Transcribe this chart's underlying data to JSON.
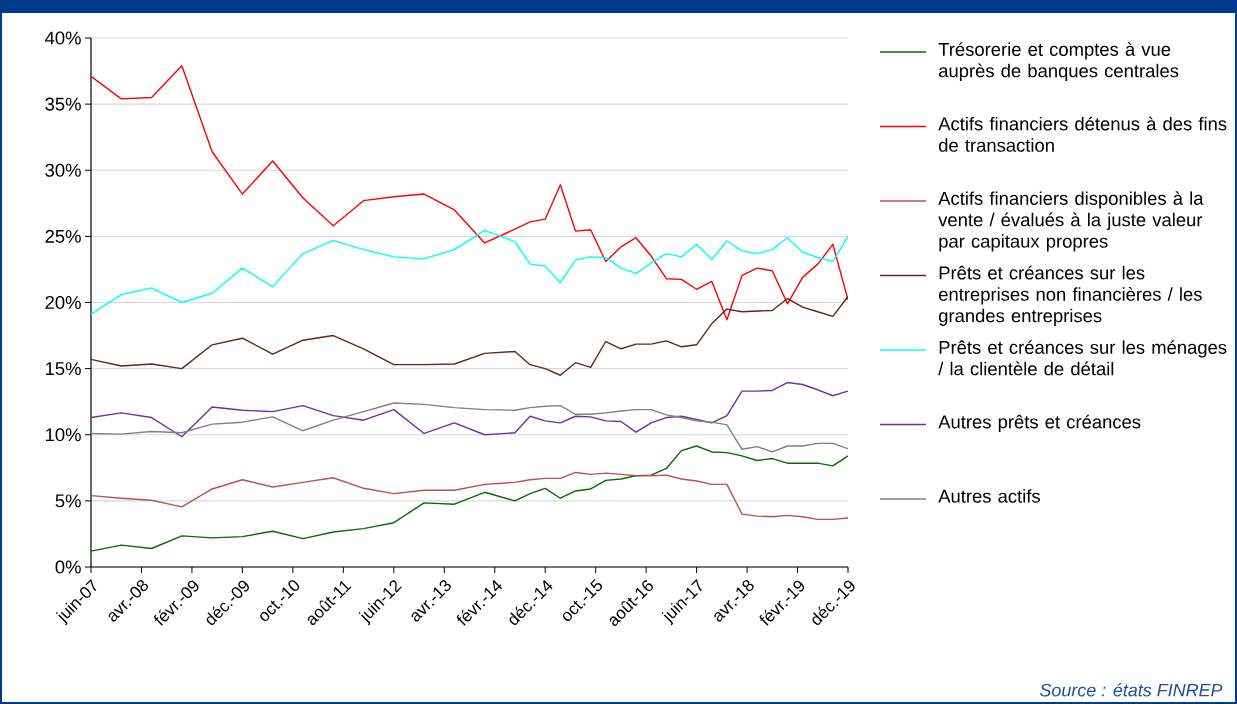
{
  "chart_data": {
    "type": "line",
    "x": [
      "2007-06",
      "2007-12",
      "2008-06",
      "2008-12",
      "2009-06",
      "2009-12",
      "2010-06",
      "2010-12",
      "2011-06",
      "2011-12",
      "2012-06",
      "2012-12",
      "2013-06",
      "2013-12",
      "2014-06",
      "2014-09",
      "2014-12",
      "2015-03",
      "2015-06",
      "2015-09",
      "2015-12",
      "2016-03",
      "2016-06",
      "2016-09",
      "2016-12",
      "2017-03",
      "2017-06",
      "2017-09",
      "2017-12",
      "2018-03",
      "2018-06",
      "2018-09",
      "2018-12",
      "2019-03",
      "2019-06",
      "2019-09",
      "2019-12"
    ],
    "series": [
      {
        "name": "Trésorerie et comptes à vue auprès de banques centrales",
        "color": "#007000",
        "values": [
          1.2,
          1.65,
          1.4,
          2.35,
          2.2,
          2.3,
          2.7,
          2.15,
          2.65,
          2.9,
          3.35,
          4.85,
          4.75,
          5.65,
          5.0,
          5.55,
          5.95,
          5.2,
          5.75,
          5.9,
          6.55,
          6.65,
          6.9,
          6.95,
          7.45,
          8.8,
          9.15,
          8.7,
          8.65,
          8.4,
          8.05,
          8.2,
          7.85,
          7.85,
          7.85,
          7.65,
          8.4
        ]
      },
      {
        "name": "Actifs financiers détenus à des fins de transaction",
        "color": "#ff0000",
        "values": [
          37.1,
          35.4,
          35.5,
          37.9,
          31.4,
          28.2,
          30.7,
          27.9,
          25.8,
          27.7,
          28.0,
          28.2,
          27.0,
          24.5,
          25.55,
          26.1,
          26.3,
          28.9,
          25.4,
          25.5,
          23.1,
          24.2,
          24.9,
          23.5,
          21.8,
          21.75,
          21.0,
          21.6,
          18.7,
          22.05,
          22.6,
          22.4,
          19.9,
          21.9,
          22.9,
          24.4,
          20.2
        ]
      },
      {
        "name": "Actifs financiers disponibles à la vente / évalués à la juste valeur par capitaux propres",
        "color": "#c0504d",
        "values": [
          5.4,
          5.2,
          5.05,
          4.55,
          5.9,
          6.6,
          6.05,
          6.4,
          6.75,
          5.95,
          5.55,
          5.8,
          5.8,
          6.25,
          6.4,
          6.6,
          6.7,
          6.7,
          7.15,
          7.0,
          7.1,
          7.0,
          6.9,
          6.9,
          6.95,
          6.65,
          6.5,
          6.25,
          6.25,
          4.0,
          3.85,
          3.8,
          3.9,
          3.8,
          3.6,
          3.6,
          3.7
        ]
      },
      {
        "name": "Prêts et créances sur les entreprises non financières / les grandes entreprises",
        "color": "#632523",
        "values": [
          15.7,
          15.2,
          15.35,
          15.0,
          16.8,
          17.3,
          16.1,
          17.15,
          17.5,
          16.5,
          15.3,
          15.3,
          15.35,
          16.15,
          16.3,
          15.3,
          15.0,
          14.5,
          15.45,
          15.1,
          17.05,
          16.5,
          16.85,
          16.85,
          17.1,
          16.65,
          16.8,
          18.4,
          19.5,
          19.3,
          19.35,
          19.4,
          20.3,
          19.65,
          19.3,
          18.95,
          20.45
        ]
      },
      {
        "name": "Prêts et créances sur les ménages / la clientèle de détail",
        "color": "#00ffff",
        "values": [
          19.1,
          20.6,
          21.1,
          20.0,
          20.7,
          22.6,
          21.2,
          23.7,
          24.7,
          24.0,
          23.45,
          23.3,
          24.0,
          25.45,
          24.6,
          22.9,
          22.75,
          21.5,
          23.2,
          23.45,
          23.4,
          22.6,
          22.2,
          23.0,
          23.7,
          23.45,
          24.4,
          23.25,
          24.65,
          23.9,
          23.7,
          24.0,
          24.9,
          23.8,
          23.4,
          23.1,
          25.0
        ]
      },
      {
        "name": "Autres prêts et créances",
        "color": "#7030a0",
        "values": [
          11.3,
          11.65,
          11.3,
          9.85,
          12.1,
          11.85,
          11.75,
          12.2,
          11.45,
          11.1,
          11.9,
          10.1,
          10.9,
          10.0,
          10.15,
          11.4,
          11.05,
          10.9,
          11.4,
          11.35,
          11.05,
          11.0,
          10.2,
          10.9,
          11.3,
          11.4,
          11.15,
          10.9,
          11.45,
          13.3,
          13.3,
          13.35,
          13.95,
          13.8,
          13.4,
          12.95,
          13.3
        ]
      },
      {
        "name": "Autres actifs",
        "color": "#808080",
        "values": [
          10.1,
          10.05,
          10.25,
          10.15,
          10.8,
          10.95,
          11.35,
          10.3,
          11.1,
          11.75,
          12.4,
          12.3,
          12.05,
          11.9,
          11.85,
          12.05,
          12.15,
          12.2,
          11.55,
          11.55,
          11.65,
          11.8,
          11.9,
          11.9,
          11.5,
          11.3,
          11.05,
          10.95,
          10.75,
          8.9,
          9.1,
          8.7,
          9.15,
          9.15,
          9.35,
          9.35,
          8.95
        ]
      }
    ],
    "xlim": [
      "2007-06",
      "2019-12"
    ],
    "xticks": [
      {
        "value": "2007-06",
        "label": "juin-07"
      },
      {
        "value": "2008-04",
        "label": "avr.-08"
      },
      {
        "value": "2009-02",
        "label": "févr.-09"
      },
      {
        "value": "2009-12",
        "label": "déc.-09"
      },
      {
        "value": "2010-10",
        "label": "oct.-10"
      },
      {
        "value": "2011-08",
        "label": "août-11"
      },
      {
        "value": "2012-06",
        "label": "juin-12"
      },
      {
        "value": "2013-04",
        "label": "avr.-13"
      },
      {
        "value": "2014-02",
        "label": "févr.-14"
      },
      {
        "value": "2014-12",
        "label": "déc.-14"
      },
      {
        "value": "2015-10",
        "label": "oct.-15"
      },
      {
        "value": "2016-08",
        "label": "août-16"
      },
      {
        "value": "2017-06",
        "label": "juin-17"
      },
      {
        "value": "2018-04",
        "label": "avr.-18"
      },
      {
        "value": "2019-02",
        "label": "févr.-19"
      },
      {
        "value": "2019-12",
        "label": "déc.-19"
      }
    ],
    "ylim": [
      0,
      40
    ],
    "yticks": [
      {
        "value": 0,
        "label": "0%"
      },
      {
        "value": 5,
        "label": "5%"
      },
      {
        "value": 10,
        "label": "10%"
      },
      {
        "value": 15,
        "label": "15%"
      },
      {
        "value": 20,
        "label": "20%"
      },
      {
        "value": 25,
        "label": "25%"
      },
      {
        "value": 30,
        "label": "30%"
      },
      {
        "value": 35,
        "label": "35%"
      },
      {
        "value": 40,
        "label": "40%"
      }
    ],
    "grid": "y",
    "legend": "right",
    "annotations": [
      "Source : états FINREP"
    ]
  }
}
